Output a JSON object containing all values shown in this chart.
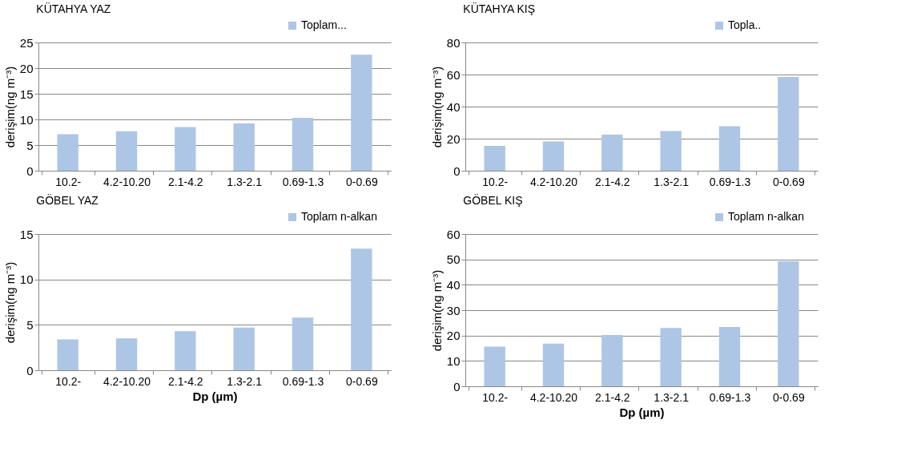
{
  "chart_data": [
    {
      "type": "bar",
      "title": "KÜTAHYA YAZ",
      "ylabel": "derişim(ng m⁻³)",
      "categories": [
        "10.2-",
        "4.2-10.20",
        "2.1-4.2",
        "1.3-2.1",
        "0.69-1.3",
        "0-0.69"
      ],
      "series": [
        {
          "name": "Toplam...",
          "color": "#adc6e5",
          "values": [
            7.1,
            7.7,
            8.5,
            9.2,
            10.3,
            22.6
          ]
        }
      ],
      "ylim": [
        0,
        25
      ],
      "yticks": [
        0,
        5,
        10,
        15,
        20,
        25
      ],
      "grid": "y",
      "legend": "top right"
    },
    {
      "type": "bar",
      "title": "KÜTAHYA KIŞ",
      "ylabel": "derişim(ng m⁻³)",
      "categories": [
        "10.2-",
        "4.2-10.20",
        "2.1-4.2",
        "1.3-2.1",
        "0.69-1.3",
        "0-0.69"
      ],
      "series": [
        {
          "name": "Topla..",
          "color": "#adc6e5",
          "values": [
            15.5,
            18.3,
            22.5,
            24.8,
            27.7,
            58.5
          ]
        }
      ],
      "ylim": [
        0,
        80
      ],
      "yticks": [
        0,
        20,
        40,
        60,
        80
      ],
      "grid": "y",
      "legend": "top right"
    },
    {
      "type": "bar",
      "title": "GÖBEL YAZ",
      "xlabel": "Dp (µm)",
      "ylabel": "derişim(ng m⁻³)",
      "categories": [
        "10.2-",
        "4.2-10.20",
        "2.1-4.2",
        "1.3-2.1",
        "0.69-1.3",
        "0-0.69"
      ],
      "series": [
        {
          "name": "Toplam n-alkan",
          "color": "#adc6e5",
          "values": [
            3.4,
            3.5,
            4.3,
            4.7,
            5.8,
            13.4
          ]
        }
      ],
      "ylim": [
        0,
        15
      ],
      "yticks": [
        0,
        5,
        10,
        15
      ],
      "grid": "y",
      "legend": "top right"
    },
    {
      "type": "bar",
      "title": "GÖBEL KIŞ",
      "xlabel": "Dp (µm)",
      "ylabel": "derişim(ng m⁻³)",
      "categories": [
        "10.2-",
        "4.2-10.20",
        "2.1-4.2",
        "1.3-2.1",
        "0.69-1.3",
        "0-0.69"
      ],
      "series": [
        {
          "name": "Toplam n-alkan",
          "color": "#adc6e5",
          "values": [
            15.6,
            16.8,
            20.2,
            23.0,
            23.4,
            49.3
          ]
        }
      ],
      "ylim": [
        0,
        60
      ],
      "yticks": [
        0,
        10,
        20,
        30,
        40,
        50,
        60
      ],
      "grid": "y",
      "legend": "top right"
    }
  ]
}
